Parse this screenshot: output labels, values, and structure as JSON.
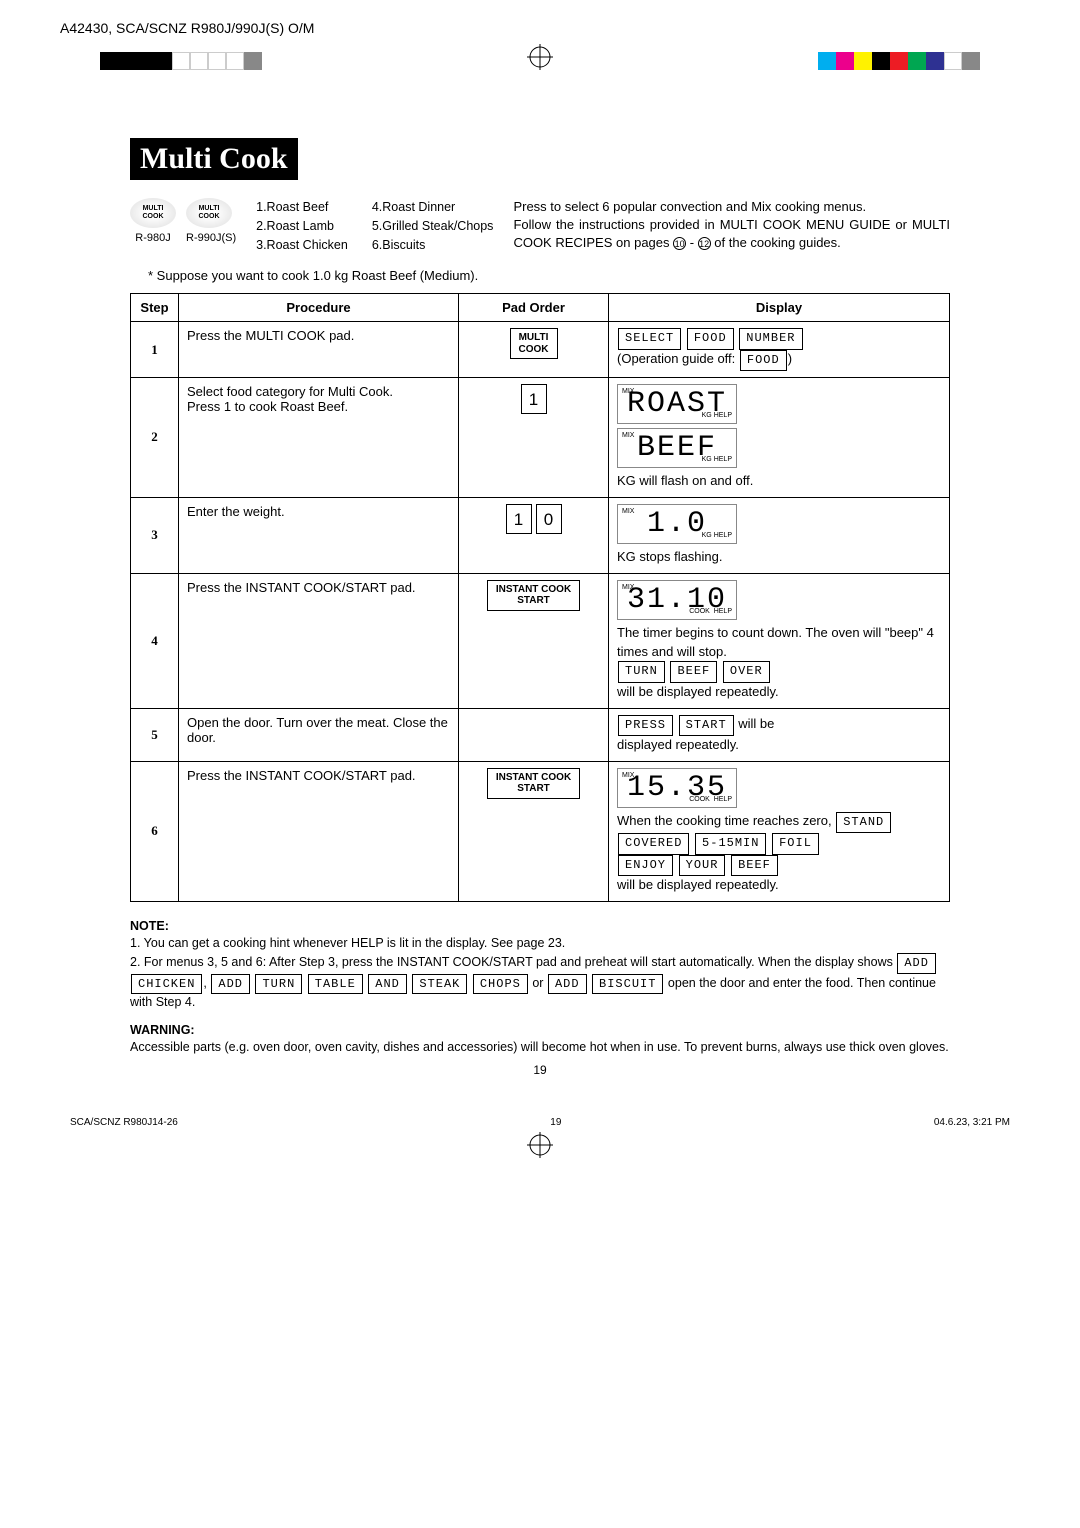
{
  "header": {
    "doc": "A42430, SCA/SCNZ R980J/990J(S) O/M"
  },
  "reg": {
    "left": [
      "#000",
      "#000",
      "#000",
      "#000",
      "#fff",
      "#fff",
      "#fff",
      "#fff",
      "#888"
    ],
    "right": [
      "#00aeef",
      "#ec008c",
      "#fff200",
      "#000",
      "#ed1c24",
      "#00a651",
      "#2e3192",
      "#fff",
      "#888"
    ]
  },
  "title": "Multi Cook",
  "pads": {
    "label1": "R-980J",
    "label2": "R-990J(S)",
    "pad_text": "MULTI\nCOOK"
  },
  "menu": {
    "col1": [
      "1.Roast Beef",
      "2.Roast Lamb",
      "3.Roast Chicken"
    ],
    "col2": [
      "4.Roast Dinner",
      "5.Grilled Steak/Chops",
      "6.Biscuits"
    ]
  },
  "intro": "Press to select 6 popular convection and Mix cooking menus.\nFollow the instructions provided in MULTI COOK MENU GUIDE or MULTI COOK RECIPES on pages ⑩ - ⑫ of the cooking guides.",
  "suppose": "* Suppose you want to cook 1.0 kg Roast Beef (Medium).",
  "th": {
    "step": "Step",
    "proc": "Procedure",
    "pad": "Pad Order",
    "disp": "Display"
  },
  "steps": [
    {
      "n": "1",
      "proc": "Press the MULTI COOK pad.",
      "pad_btn": "MULTI\nCOOK",
      "disp_boxes": [
        "SELECT",
        "FOOD",
        "NUMBER"
      ],
      "disp_after": "(Operation guide off:",
      "disp_after_box": "FOOD",
      "disp_after2": ")"
    },
    {
      "n": "2",
      "proc": "Select food category for Multi Cook.\nPress 1 to cook Roast Beef.",
      "pad_num": [
        "1"
      ],
      "lcd1": "ROAST",
      "lcd2": "BEEF",
      "note": "KG will flash on and off."
    },
    {
      "n": "3",
      "proc": "Enter the weight.",
      "pad_num": [
        "1",
        "0"
      ],
      "lcd1": "1.0",
      "note": "KG stops flashing."
    },
    {
      "n": "4",
      "proc": "Press the INSTANT COOK/START pad.",
      "pad_btn": "INSTANT COOK\nSTART",
      "lcd1": "31.10",
      "text1": "The timer begins to count down. The oven will \"beep\" 4 times and will stop.",
      "boxes2": [
        "TURN",
        "BEEF",
        "OVER"
      ],
      "text2": "will be displayed repeatedly."
    },
    {
      "n": "5",
      "proc": "Open the door. Turn over the meat. Close the door.",
      "boxes1": [
        "PRESS",
        "START"
      ],
      "text1": "will be displayed repeatedly."
    },
    {
      "n": "6",
      "proc": "Press the INSTANT COOK/START pad.",
      "pad_btn": "INSTANT COOK\nSTART",
      "lcd1": "15.35",
      "text1": "When the cooking time reaches zero,",
      "boxes2": [
        "STAND",
        "COVERED",
        "5-15MIN",
        "FOIL",
        "ENJOY",
        "YOUR",
        "BEEF"
      ],
      "text2": "will be displayed repeatedly."
    }
  ],
  "notes": {
    "h": "NOTE:",
    "n1": "1. You can get a cooking hint whenever HELP is lit in the display. See page 23.",
    "n2a": "2. For menus 3, 5 and 6: After Step 3, press the INSTANT COOK/START pad and preheat will start automatically. When the display shows",
    "n2_boxes1": [
      "ADD",
      "CHICKEN"
    ],
    "n2b": ",",
    "n2_boxes2": [
      "ADD",
      "TURN",
      "TABLE",
      "AND",
      "STEAK",
      "CHOPS"
    ],
    "n2c": "or",
    "n2_boxes3": [
      "ADD",
      "BISCUIT"
    ],
    "n2d": "open the door and enter the food. Then continue with Step 4."
  },
  "warning": {
    "h": "WARNING:",
    "t": "Accessible parts (e.g. oven door, oven cavity, dishes and accessories) will become hot when in use. To prevent burns, always use thick oven gloves."
  },
  "page": "19",
  "footer": {
    "l": "SCA/SCNZ R980J14-26",
    "c": "19",
    "r": "04.6.23, 3:21 PM"
  }
}
